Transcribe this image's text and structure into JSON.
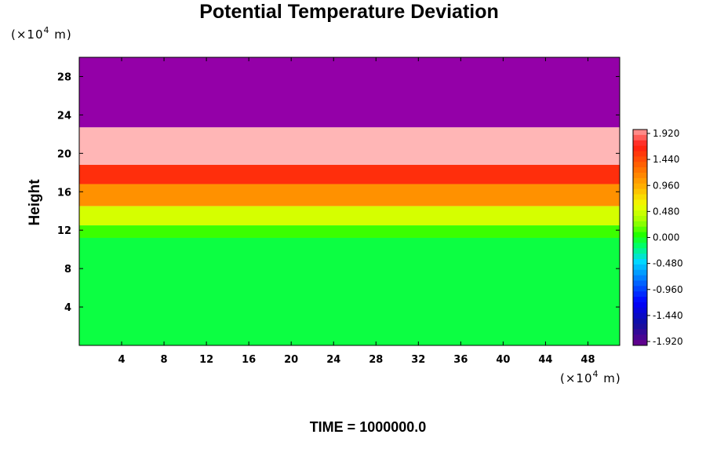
{
  "chart_data": {
    "type": "heatmap",
    "title": "Potential Temperature Deviation",
    "ylabel": "Height",
    "x_unit": {
      "prefix": "(×10",
      "exp": "4",
      "suffix": " m)"
    },
    "y_unit": {
      "prefix": "(×10",
      "exp": "4",
      "suffix": " m)"
    },
    "xlim": [
      0,
      51
    ],
    "ylim": [
      0,
      30
    ],
    "x_ticks": [
      4,
      8,
      12,
      16,
      20,
      24,
      28,
      32,
      36,
      40,
      44,
      48
    ],
    "x_tick_labels": [
      "4",
      "8",
      "12",
      "16",
      "20",
      "24",
      "28",
      "32",
      "36",
      "40",
      "44",
      "48"
    ],
    "y_ticks": [
      4,
      8,
      12,
      16,
      20,
      24,
      28
    ],
    "y_tick_labels": [
      "4",
      "8",
      "12",
      "16",
      "20",
      "24",
      "28"
    ],
    "colorbar": {
      "ticks": [
        "1.920",
        "1.440",
        "0.960",
        "0.480",
        "0.000",
        "-0.480",
        "-0.960",
        "-1.440",
        "-1.920"
      ],
      "range": [
        -2.0,
        2.0
      ]
    },
    "bands": [
      {
        "ymin": 22.7,
        "ymax": 30,
        "value": -2.2
      },
      {
        "ymin": 18.8,
        "ymax": 22.7,
        "value": 2.1
      },
      {
        "ymin": 16.8,
        "ymax": 18.8,
        "value": 1.6
      },
      {
        "ymin": 14.5,
        "ymax": 16.8,
        "value": 1.1
      },
      {
        "ymin": 12.5,
        "ymax": 14.5,
        "value": 0.5
      },
      {
        "ymin": 11.2,
        "ymax": 12.5,
        "value": 0.1
      },
      {
        "ymin": 0,
        "ymax": 11.2,
        "value": -0.08
      }
    ],
    "footer": "TIME = 1000000.0"
  },
  "colors": {
    "bg": "#ffffff",
    "axis": "#000000",
    "top_band": "#9400a8",
    "upper_pink": "#ffb6b6"
  }
}
